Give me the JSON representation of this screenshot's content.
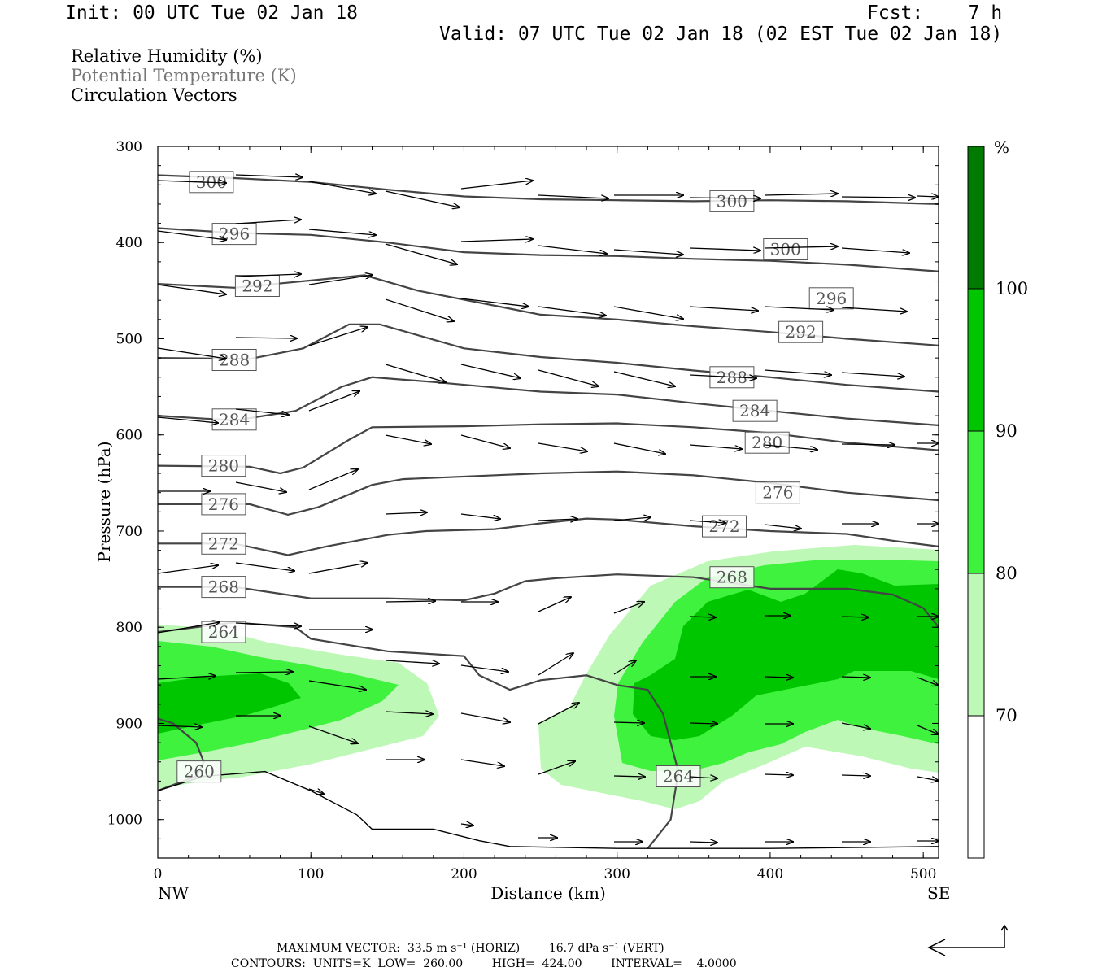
{
  "header": {
    "init": "Init: 00 UTC Tue 02 Jan 18",
    "fcst": "Fcst:    7 h",
    "valid": "Valid: 07 UTC Tue 02 Jan 18 (02 EST Tue 02 Jan 18)"
  },
  "legend": {
    "rh": "Relative Humidity (%)",
    "theta": "Potential Temperature (K)",
    "vectors": "Circulation Vectors"
  },
  "colorbar": {
    "unit": "%",
    "ticks": [
      "100",
      "90",
      "80",
      "70"
    ],
    "colors": [
      "#ffffff",
      "#bdf8b6",
      "#3ef23e",
      "#00c600",
      "#007a00"
    ]
  },
  "footer": {
    "line1": "MAXIMUM VECTOR:  33.5 m s⁻¹ (HORIZ)        16.7 dPa s⁻¹ (VERT)",
    "line2": "CONTOURS:  UNITS=K  LOW=  260.00        HIGH=  424.00        INTERVAL=    4.0000"
  },
  "chart_data": {
    "type": "cross-section",
    "xlabel": "Distance (km)",
    "ylabel": "Pressure (hPa)",
    "xlim": [
      0,
      510
    ],
    "ylim": [
      1040,
      300
    ],
    "x_ticks": [
      "0",
      "100",
      "200",
      "300",
      "400",
      "500"
    ],
    "y_ticks": [
      "300",
      "400",
      "500",
      "600",
      "700",
      "800",
      "900",
      "1000"
    ],
    "x_end_labels": [
      "NW",
      "SE"
    ],
    "theta_contours": [
      {
        "label": "300",
        "pts": [
          [
            0,
            330
          ],
          [
            50,
            333
          ],
          [
            100,
            337
          ],
          [
            150,
            345
          ],
          [
            200,
            352
          ],
          [
            250,
            355
          ],
          [
            300,
            356
          ],
          [
            350,
            357
          ],
          [
            400,
            356
          ],
          [
            450,
            357
          ],
          [
            510,
            360
          ]
        ]
      },
      {
        "label": "296",
        "pts": [
          [
            0,
            385
          ],
          [
            50,
            390
          ],
          [
            100,
            392
          ],
          [
            150,
            400
          ],
          [
            200,
            410
          ],
          [
            250,
            413
          ],
          [
            300,
            414
          ],
          [
            350,
            417
          ],
          [
            400,
            419
          ],
          [
            450,
            423
          ],
          [
            510,
            430
          ]
        ]
      },
      {
        "label": "292",
        "pts": [
          [
            0,
            443
          ],
          [
            50,
            447
          ],
          [
            90,
            441
          ],
          [
            135,
            434
          ],
          [
            170,
            450
          ],
          [
            250,
            475
          ],
          [
            300,
            480
          ],
          [
            350,
            487
          ],
          [
            400,
            493
          ],
          [
            450,
            500
          ],
          [
            510,
            507
          ]
        ]
      },
      {
        "label": "288",
        "pts": [
          [
            0,
            520
          ],
          [
            60,
            521
          ],
          [
            95,
            510
          ],
          [
            125,
            485
          ],
          [
            145,
            485
          ],
          [
            200,
            510
          ],
          [
            250,
            519
          ],
          [
            300,
            525
          ],
          [
            350,
            533
          ],
          [
            400,
            540
          ],
          [
            450,
            548
          ],
          [
            510,
            555
          ]
        ]
      },
      {
        "label": "284",
        "pts": [
          [
            0,
            580
          ],
          [
            50,
            585
          ],
          [
            90,
            575
          ],
          [
            120,
            550
          ],
          [
            140,
            540
          ],
          [
            180,
            545
          ],
          [
            250,
            555
          ],
          [
            300,
            558
          ],
          [
            350,
            567
          ],
          [
            400,
            575
          ],
          [
            450,
            583
          ],
          [
            510,
            590
          ]
        ]
      },
      {
        "label": "280",
        "pts": [
          [
            0,
            632
          ],
          [
            60,
            633
          ],
          [
            80,
            640
          ],
          [
            95,
            634
          ],
          [
            125,
            605
          ],
          [
            140,
            592
          ],
          [
            200,
            591
          ],
          [
            250,
            589
          ],
          [
            300,
            588
          ],
          [
            350,
            592
          ],
          [
            400,
            598
          ],
          [
            450,
            608
          ],
          [
            510,
            616
          ]
        ]
      },
      {
        "label": "276",
        "pts": [
          [
            0,
            672
          ],
          [
            60,
            672
          ],
          [
            85,
            683
          ],
          [
            105,
            675
          ],
          [
            140,
            652
          ],
          [
            160,
            646
          ],
          [
            250,
            640
          ],
          [
            300,
            638
          ],
          [
            350,
            642
          ],
          [
            400,
            650
          ],
          [
            450,
            660
          ],
          [
            510,
            668
          ]
        ]
      },
      {
        "label": "272",
        "pts": [
          [
            0,
            713
          ],
          [
            50,
            713
          ],
          [
            85,
            725
          ],
          [
            110,
            716
          ],
          [
            150,
            704
          ],
          [
            175,
            700
          ],
          [
            220,
            698
          ],
          [
            250,
            692
          ],
          [
            280,
            687
          ],
          [
            300,
            688
          ],
          [
            350,
            695
          ],
          [
            400,
            700
          ],
          [
            450,
            703
          ],
          [
            480,
            710
          ],
          [
            510,
            716
          ]
        ]
      },
      {
        "label": "268",
        "pts": [
          [
            0,
            758
          ],
          [
            50,
            758
          ],
          [
            100,
            770
          ],
          [
            150,
            770
          ],
          [
            200,
            772
          ],
          [
            220,
            765
          ],
          [
            240,
            752
          ],
          [
            260,
            749
          ],
          [
            300,
            745
          ],
          [
            350,
            748
          ],
          [
            400,
            760
          ],
          [
            450,
            760
          ],
          [
            480,
            766
          ],
          [
            500,
            780
          ],
          [
            510,
            800
          ]
        ]
      },
      {
        "label": "264",
        "pts": [
          [
            0,
            805
          ],
          [
            50,
            795
          ],
          [
            90,
            800
          ],
          [
            100,
            812
          ],
          [
            150,
            825
          ],
          [
            200,
            830
          ],
          [
            210,
            850
          ],
          [
            230,
            865
          ],
          [
            250,
            855
          ],
          [
            280,
            850
          ],
          [
            300,
            860
          ],
          [
            320,
            865
          ],
          [
            330,
            890
          ],
          [
            340,
            950
          ],
          [
            335,
            1000
          ],
          [
            320,
            1030
          ]
        ]
      },
      {
        "label": "260",
        "pts": [
          [
            0,
            895
          ],
          [
            10,
            900
          ],
          [
            25,
            920
          ],
          [
            30,
            940
          ],
          [
            25,
            955
          ],
          [
            0,
            970
          ]
        ]
      }
    ],
    "ground_line": [
      [
        0,
        970
      ],
      [
        30,
        955
      ],
      [
        70,
        950
      ],
      [
        100,
        970
      ],
      [
        130,
        995
      ],
      [
        140,
        1010
      ],
      [
        180,
        1010
      ],
      [
        210,
        1022
      ],
      [
        230,
        1028
      ],
      [
        300,
        1030
      ],
      [
        400,
        1030
      ],
      [
        510,
        1028
      ]
    ],
    "rh_legend_levels": [
      70,
      80,
      90,
      100
    ]
  }
}
